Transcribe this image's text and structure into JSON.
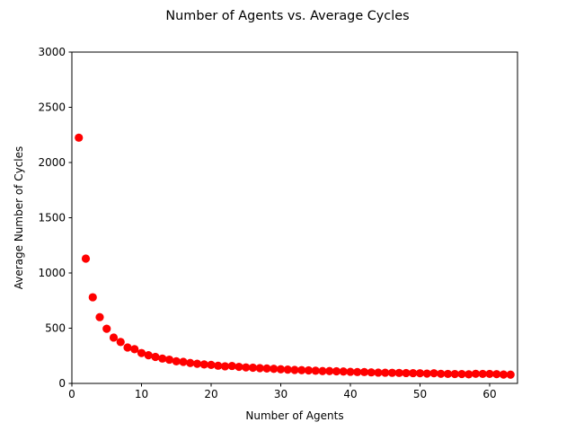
{
  "chart_data": {
    "type": "scatter",
    "title": "Number of Agents vs. Average Cycles",
    "xlabel": "Number of Agents",
    "ylabel": "Average Number of Cycles",
    "xlim": [
      0,
      64
    ],
    "ylim": [
      0,
      3000
    ],
    "xticks": [
      0,
      10,
      20,
      30,
      40,
      50,
      60
    ],
    "yticks": [
      0,
      500,
      1000,
      1500,
      2000,
      2500,
      3000
    ],
    "grid": false,
    "marker_color": "#ff0000",
    "series": [
      {
        "x": [
          1,
          2,
          3,
          4,
          5,
          6,
          7,
          8,
          9,
          10,
          11,
          12,
          13,
          14,
          15,
          16,
          17,
          18,
          19,
          20,
          21,
          22,
          23,
          24,
          25,
          26,
          27,
          28,
          29,
          30,
          31,
          32,
          33,
          34,
          35,
          36,
          37,
          38,
          39,
          40,
          41,
          42,
          43,
          44,
          45,
          46,
          47,
          48,
          49,
          50,
          51,
          52,
          53,
          54,
          55,
          56,
          57,
          58,
          59,
          60,
          61,
          62,
          63
        ],
        "y": [
          2225,
          1130,
          780,
          600,
          495,
          415,
          375,
          325,
          310,
          275,
          255,
          240,
          225,
          215,
          200,
          195,
          185,
          178,
          172,
          168,
          160,
          155,
          158,
          150,
          145,
          142,
          138,
          135,
          132,
          128,
          125,
          122,
          120,
          118,
          115,
          112,
          112,
          110,
          108,
          105,
          103,
          103,
          100,
          98,
          97,
          96,
          95,
          94,
          93,
          92,
          89,
          92,
          87,
          86,
          85,
          85,
          82,
          87,
          86,
          86,
          84,
          80,
          79
        ]
      }
    ]
  }
}
